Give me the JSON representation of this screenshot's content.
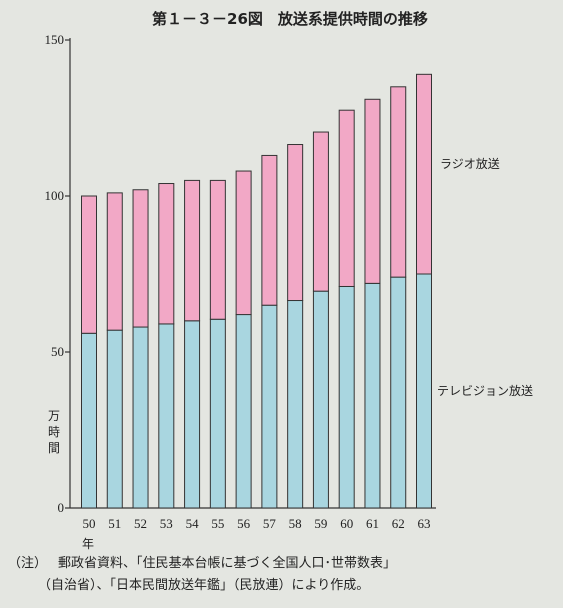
{
  "chart_data": {
    "type": "bar",
    "stacked": true,
    "title": "第１－３－26図　放送系提供時間の推移",
    "ylabel": "万時間",
    "xlabel_suffix": "年",
    "ylim": [
      0,
      150
    ],
    "yticks": [
      0,
      50,
      100,
      150
    ],
    "categories": [
      "50",
      "51",
      "52",
      "53",
      "54",
      "55",
      "56",
      "57",
      "58",
      "59",
      "60",
      "61",
      "62",
      "63"
    ],
    "series": [
      {
        "name": "テレビジョン放送",
        "color": "#a9d6e0",
        "values": [
          56,
          57,
          58,
          59,
          60,
          60.5,
          62,
          65,
          66.5,
          69.5,
          71,
          72,
          74,
          75
        ]
      },
      {
        "name": "ラジオ放送",
        "color": "#f2a8c6",
        "values": [
          44,
          44,
          44,
          45,
          45,
          44.5,
          46,
          48,
          50,
          51,
          56.5,
          59,
          61,
          64
        ]
      }
    ],
    "grid": false,
    "legend": "right"
  },
  "note": {
    "tag": "（注）",
    "line1": "郵政省資料、「住民基本台帳に基づく全国人口･世帯数表」",
    "line2": "（自治省）、「日本民間放送年鑑」（民放連）により作成。"
  }
}
